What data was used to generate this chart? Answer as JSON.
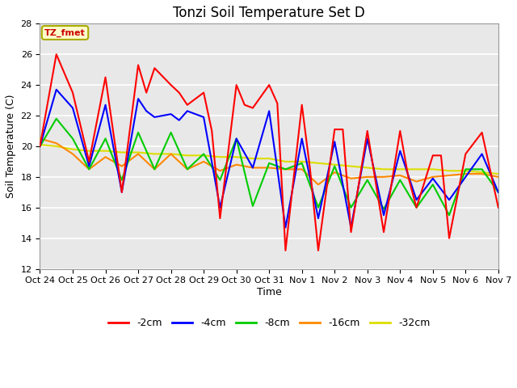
{
  "title": "Tonzi Soil Temperature Set D",
  "xlabel": "Time",
  "ylabel": "Soil Temperature (C)",
  "ylim": [
    12,
    28
  ],
  "xlim": [
    0,
    14
  ],
  "xtick_labels": [
    "Oct 24",
    "Oct 25",
    "Oct 26",
    "Oct 27",
    "Oct 28",
    "Oct 29",
    "Oct 30",
    "Oct 31",
    "Nov 1",
    "Nov 2",
    "Nov 3",
    "Nov 4",
    "Nov 5",
    "Nov 6",
    "Nov 7"
  ],
  "legend_label": "TZ_fmet",
  "plot_bg_color": "#e8e8e8",
  "fig_bg_color": "#ffffff",
  "grid_color": "#ffffff",
  "series": {
    "-2cm": {
      "color": "#ff0000",
      "x": [
        0,
        0.5,
        1.0,
        1.5,
        2.0,
        2.5,
        3.0,
        3.25,
        3.5,
        4.0,
        4.25,
        4.5,
        5.0,
        5.25,
        5.5,
        6.0,
        6.25,
        6.5,
        7.0,
        7.25,
        7.5,
        8.0,
        8.25,
        8.5,
        9.0,
        9.25,
        9.5,
        10.0,
        10.5,
        11.0,
        11.25,
        11.5,
        12.0,
        12.25,
        12.5,
        13.0,
        13.5,
        14.0
      ],
      "y": [
        20.0,
        26.0,
        23.5,
        19.0,
        24.5,
        17.0,
        25.3,
        23.5,
        25.1,
        24.0,
        23.5,
        22.7,
        23.5,
        21.0,
        15.3,
        24.0,
        22.7,
        22.5,
        24.0,
        22.8,
        13.2,
        22.7,
        18.5,
        13.2,
        21.1,
        21.1,
        14.4,
        21.0,
        14.4,
        21.0,
        18.0,
        16.0,
        19.4,
        19.4,
        14.0,
        19.5,
        20.9,
        16.0
      ]
    },
    "-4cm": {
      "color": "#0000ff",
      "x": [
        0,
        0.5,
        1.0,
        1.5,
        2.0,
        2.5,
        3.0,
        3.25,
        3.5,
        4.0,
        4.25,
        4.5,
        5.0,
        5.5,
        6.0,
        6.5,
        7.0,
        7.5,
        8.0,
        8.5,
        9.0,
        9.5,
        10.0,
        10.5,
        11.0,
        11.5,
        12.0,
        12.5,
        13.0,
        13.5,
        14.0
      ],
      "y": [
        20.0,
        23.7,
        22.5,
        18.7,
        22.7,
        17.0,
        23.1,
        22.3,
        21.9,
        22.1,
        21.7,
        22.3,
        21.9,
        16.0,
        20.5,
        18.6,
        22.3,
        14.7,
        20.5,
        15.3,
        20.3,
        14.7,
        20.5,
        15.5,
        19.7,
        16.5,
        17.9,
        16.5,
        18.0,
        19.5,
        17.0
      ]
    },
    "-8cm": {
      "color": "#00cc00",
      "x": [
        0,
        0.5,
        1.0,
        1.5,
        2.0,
        2.5,
        3.0,
        3.5,
        4.0,
        4.5,
        5.0,
        5.5,
        6.0,
        6.5,
        7.0,
        7.5,
        8.0,
        8.5,
        9.0,
        9.5,
        10.0,
        10.5,
        11.0,
        11.5,
        12.0,
        12.5,
        13.0,
        13.5,
        14.0
      ],
      "y": [
        20.0,
        21.8,
        20.5,
        18.5,
        20.5,
        17.8,
        20.9,
        18.5,
        20.9,
        18.5,
        19.5,
        17.8,
        20.5,
        16.1,
        18.9,
        18.5,
        18.9,
        16.0,
        18.7,
        16.0,
        17.8,
        15.9,
        17.8,
        16.0,
        17.5,
        15.5,
        18.5,
        18.5,
        17.0
      ]
    },
    "-16cm": {
      "color": "#ff8800",
      "x": [
        0,
        0.5,
        1.0,
        1.5,
        2.0,
        2.5,
        3.0,
        3.5,
        4.0,
        4.5,
        5.0,
        5.5,
        6.0,
        6.5,
        7.0,
        7.5,
        8.0,
        8.5,
        9.0,
        9.5,
        10.0,
        10.5,
        11.0,
        11.5,
        12.0,
        12.5,
        13.0,
        13.5,
        14.0
      ],
      "y": [
        20.5,
        20.2,
        19.5,
        18.5,
        19.3,
        18.7,
        19.5,
        18.5,
        19.5,
        18.5,
        19.0,
        18.4,
        18.8,
        18.6,
        18.6,
        18.5,
        18.5,
        17.5,
        18.3,
        17.9,
        18.0,
        18.0,
        18.1,
        17.7,
        18.0,
        18.1,
        18.2,
        18.2,
        18.0
      ]
    },
    "-32cm": {
      "color": "#dddd00",
      "x": [
        0,
        0.5,
        1.0,
        1.5,
        2.0,
        2.5,
        3.0,
        3.5,
        4.0,
        4.5,
        5.0,
        5.5,
        6.0,
        6.5,
        7.0,
        7.5,
        8.0,
        8.5,
        9.0,
        9.5,
        10.0,
        10.5,
        11.0,
        11.5,
        12.0,
        12.5,
        13.0,
        13.5,
        14.0
      ],
      "y": [
        20.1,
        20.0,
        19.8,
        19.7,
        19.7,
        19.6,
        19.6,
        19.5,
        19.5,
        19.4,
        19.4,
        19.3,
        19.3,
        19.2,
        19.2,
        19.0,
        19.0,
        18.9,
        18.8,
        18.7,
        18.6,
        18.5,
        18.5,
        18.5,
        18.5,
        18.4,
        18.4,
        18.3,
        18.2
      ]
    }
  },
  "yticks": [
    12,
    14,
    16,
    18,
    20,
    22,
    24,
    26,
    28
  ],
  "title_fontsize": 12,
  "axis_label_fontsize": 9,
  "tick_fontsize": 8,
  "legend_fontsize": 9,
  "annotation_fontsize": 8
}
